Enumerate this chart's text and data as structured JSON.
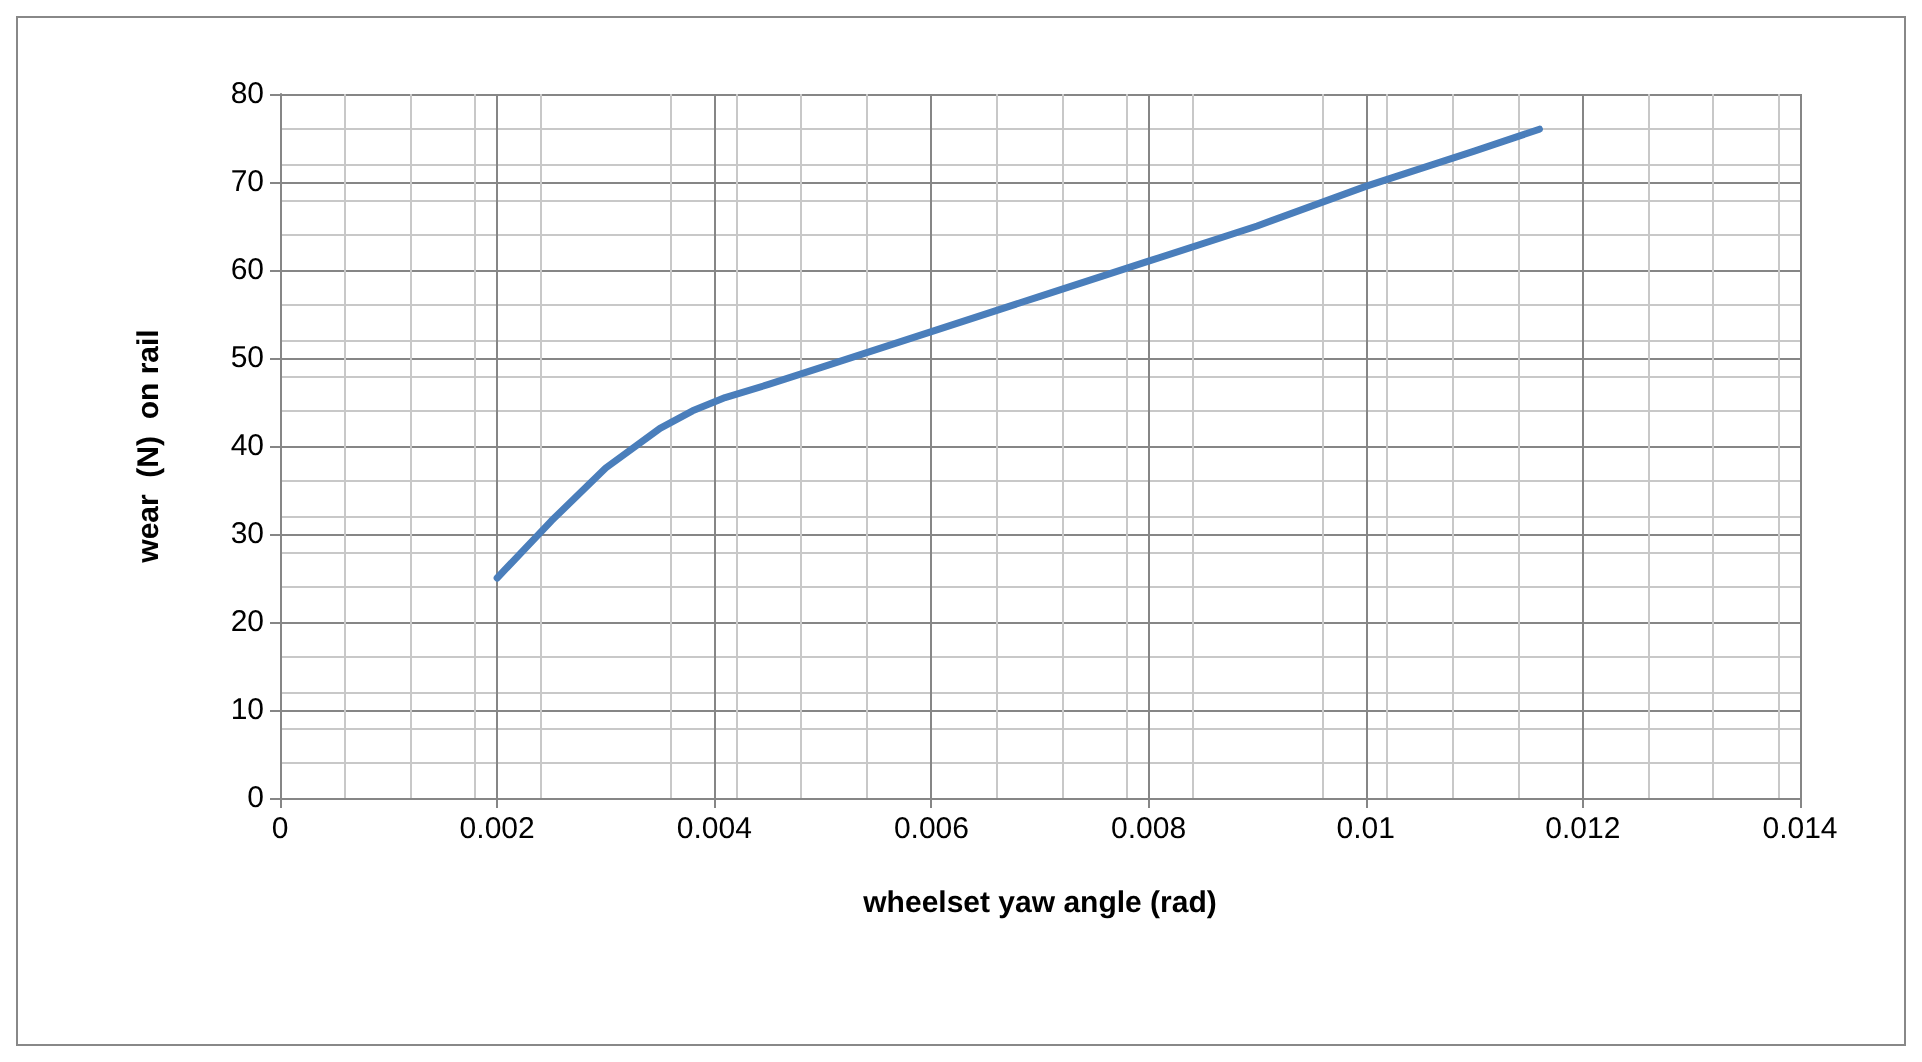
{
  "chart_data": {
    "type": "line",
    "xlabel": "wheelset yaw angle (rad)",
    "ylabel": "wear  (N)  on rail",
    "x": [
      0.002,
      0.0025,
      0.003,
      0.0035,
      0.0038,
      0.0041,
      0.0045,
      0.005,
      0.006,
      0.007,
      0.008,
      0.009,
      0.01,
      0.011,
      0.0116
    ],
    "series": [
      {
        "color": "#4a7ebb",
        "values": [
          25,
          31.5,
          37.5,
          42,
          44,
          45.5,
          47,
          49,
          53,
          57,
          61,
          65,
          69.5,
          73.5,
          76
        ]
      }
    ],
    "xlim": [
      0,
      0.014
    ],
    "xticks": [
      0,
      0.002,
      0.004,
      0.006,
      0.008,
      0.01,
      0.012,
      0.014
    ],
    "ylim": [
      0,
      80
    ],
    "yticks": [
      0,
      10,
      20,
      30,
      40,
      50,
      60,
      70,
      80
    ],
    "grid": true,
    "marker": "none",
    "line_style": "solid"
  }
}
